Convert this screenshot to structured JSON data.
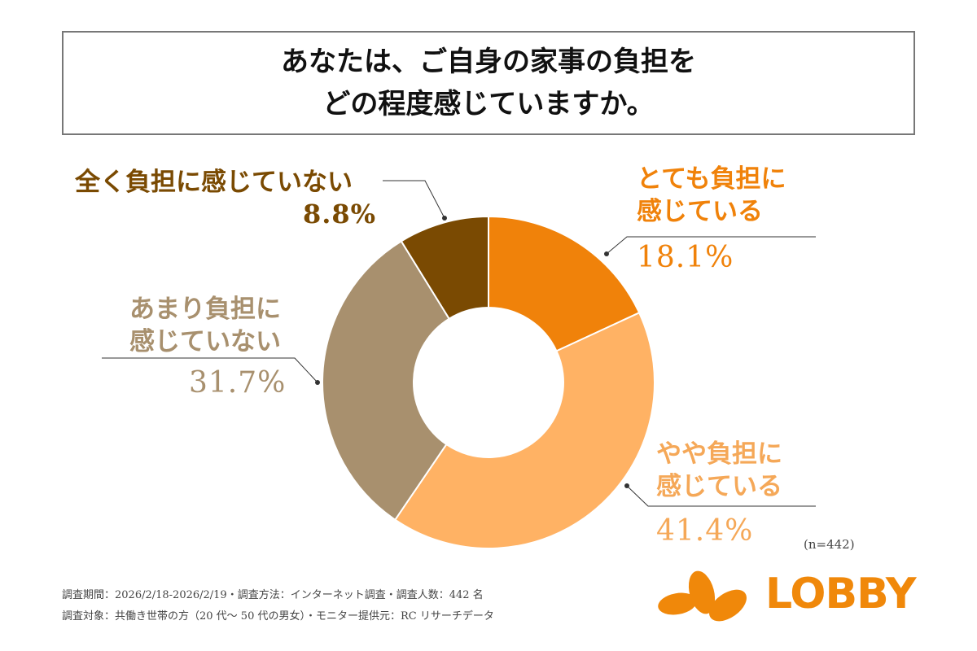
{
  "title": [
    "あなたは、ご自身の家事の負担を",
    "どの程度感じていますか。"
  ],
  "chart_data": {
    "type": "pie",
    "donut": true,
    "start": "top, clockwise",
    "categories": [
      "とても負担に感じている",
      "やや負担に感じている",
      "あまり負担に感じていない",
      "全く負担に感じていない"
    ],
    "values": [
      18.1,
      41.4,
      31.7,
      8.8
    ],
    "labels": [
      [
        "とても負担に",
        "感じている"
      ],
      [
        "やや負担に",
        "感じている"
      ],
      [
        "あまり負担に",
        "感じていない"
      ],
      [
        "全く負担に感じていない"
      ]
    ],
    "value_labels": [
      "18.1%",
      "41.4%",
      "31.7%",
      "8.8%"
    ],
    "colors": [
      "#F0820A",
      "#FFB264",
      "#A8906E",
      "#7A4A02"
    ],
    "label_colors": [
      "#F0820A",
      "#F5A858",
      "#A8906E",
      "#7A4A02"
    ]
  },
  "sample": "(n=442)",
  "footer": [
    "調査期間：2026/2/18-2026/2/19・調査方法：インターネット調査・調査人数：442 名",
    "調査対象：共働き世帯の方（20 代～ 50 代の男女）・モニター提供元：RC リサーチデータ"
  ],
  "logo": {
    "text": "LOBBY",
    "color": "#F0880A"
  }
}
